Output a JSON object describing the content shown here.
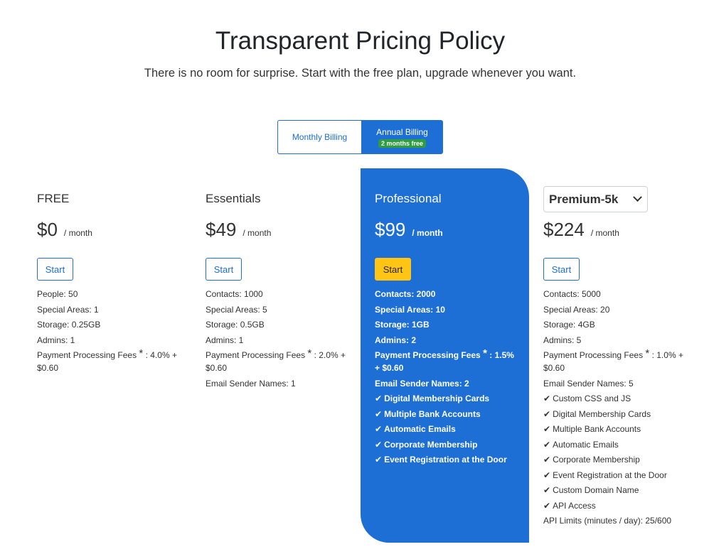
{
  "header": {
    "title": "Transparent Pricing Policy",
    "subtitle": "There is no room for surprise. Start with the free plan, upgrade whenever you want."
  },
  "billing": {
    "monthly_label": "Monthly Billing",
    "annual_label": "Annual Billing",
    "annual_badge": "2 months free",
    "selected": "annual"
  },
  "colors": {
    "accent": "#1d6fd6",
    "highlight_button": "#ffc515",
    "badge": "#2e9e3e"
  },
  "plans": {
    "free": {
      "name": "FREE",
      "price": "$0",
      "per": "/ month",
      "button": "Start",
      "features": [
        "People: 50",
        "Special Areas: 1",
        "Storage: 0.25GB",
        "Admins: 1"
      ],
      "fees_label": "Payment Processing Fees",
      "fees_mark": "*",
      "fees_value": ": 4.0% + $0.60",
      "extra": []
    },
    "essentials": {
      "name": "Essentials",
      "price": "$49",
      "per": "/ month",
      "button": "Start",
      "features": [
        "Contacts: 1000",
        "Special Areas: 5",
        "Storage: 0.5GB",
        "Admins: 1"
      ],
      "fees_label": "Payment Processing Fees",
      "fees_mark": "*",
      "fees_value": ": 2.0% + $0.60",
      "extra": [
        "Email Sender Names: 1"
      ]
    },
    "professional": {
      "name": "Professional",
      "price": "$99",
      "per": "/ month",
      "button": "Start",
      "features": [
        "Contacts: 2000",
        "Special Areas: 10",
        "Storage: 1GB",
        "Admins: 2"
      ],
      "fees_label": "Payment Processing Fees",
      "fees_mark": "*",
      "fees_value": ": 1.5% + $0.60",
      "extra": [
        "Email Sender Names: 2"
      ],
      "checks": [
        "Digital Membership Cards",
        "Multiple Bank Accounts",
        "Automatic Emails",
        "Corporate Membership",
        "Event Registration at the Door"
      ]
    },
    "premium": {
      "select_value": "Premium-5k",
      "price": "$224",
      "per": "/ month",
      "button": "Start",
      "features": [
        "Contacts: 5000",
        "Special Areas: 20",
        "Storage: 4GB",
        "Admins: 5"
      ],
      "fees_label": "Payment Processing Fees",
      "fees_mark": "*",
      "fees_value": ": 1.0% + $0.60",
      "extra": [
        "Email Sender Names: 5"
      ],
      "checks": [
        "Custom CSS and JS",
        "Digital Membership Cards",
        "Multiple Bank Accounts",
        "Automatic Emails",
        "Corporate Membership",
        "Event Registration at the Door",
        "Custom Domain Name",
        "API Access"
      ],
      "footer": "API Limits (minutes / day): 25/600"
    }
  }
}
